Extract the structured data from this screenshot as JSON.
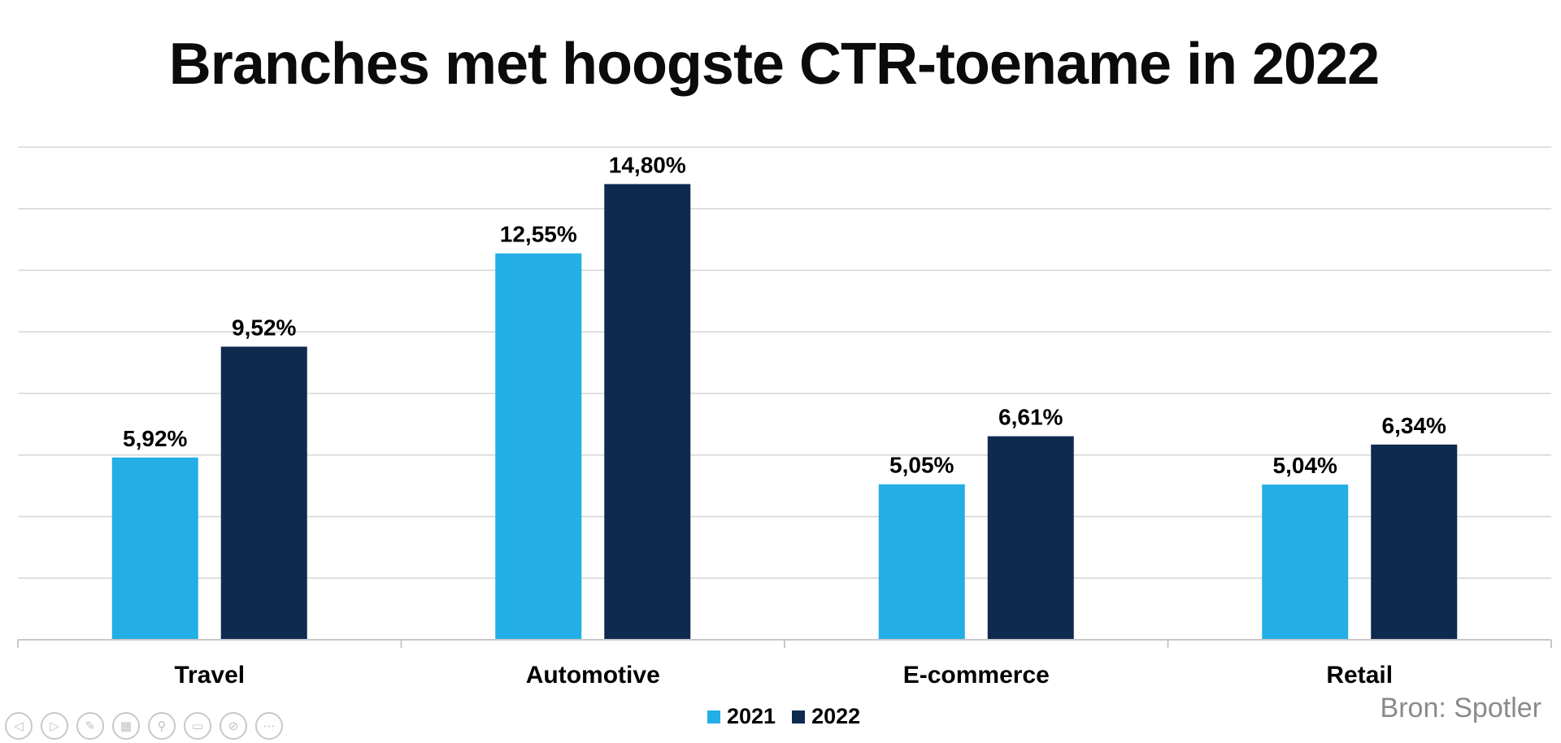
{
  "chart_data": {
    "type": "bar",
    "title": "Branches met hoogste CTR-toename in 2022",
    "categories": [
      "Travel",
      "Automotive",
      "E-commerce",
      "Retail"
    ],
    "series": [
      {
        "name": "2021",
        "values": [
          5.92,
          12.55,
          5.05,
          5.04
        ],
        "labels": [
          "5,92%",
          "12,55%",
          "5,05%",
          "5,04%"
        ],
        "color": "#23aee5"
      },
      {
        "name": "2022",
        "values": [
          9.52,
          14.8,
          6.61,
          6.34
        ],
        "labels": [
          "9,52%",
          "14,80%",
          "6,61%",
          "6,34%"
        ],
        "color": "#0f2a4f"
      }
    ],
    "ylim": [
      0,
      16
    ],
    "grid": true,
    "legend_position": "bottom-center",
    "y_tick_labels_shown": false
  },
  "source": "Bron: Spotler",
  "presentation_controls": [
    "prev-icon",
    "next-icon",
    "pen-icon",
    "slides-icon",
    "zoom-icon",
    "subtitles-icon",
    "camera-off-icon",
    "more-icon"
  ],
  "control_glyphs": [
    "◁",
    "▷",
    "✎",
    "▦",
    "⚲",
    "▭",
    "⊘",
    "⋯"
  ]
}
